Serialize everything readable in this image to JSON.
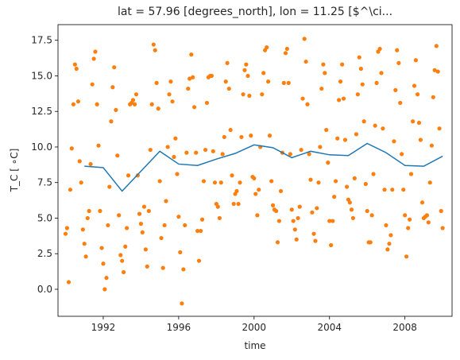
{
  "chart_data": {
    "type": "scatter",
    "title": "lat = 57.96 [degrees_north], lon = 11.25 [$^\\ci...",
    "xlabel": "time",
    "ylabel": "T_C [$^\\circ$C]",
    "ylabel_display": "T_C [ ∘C]",
    "xlim": [
      1989.6,
      2010.5
    ],
    "ylim": [
      -1.9,
      18.6
    ],
    "xticks": [
      1992,
      1996,
      2000,
      2004,
      2008
    ],
    "yticks": [
      0.0,
      2.5,
      5.0,
      7.5,
      10.0,
      12.5,
      15.0,
      17.5
    ],
    "ytick_labels": [
      "0.0",
      "2.5",
      "5.0",
      "7.5",
      "10.0",
      "12.5",
      "15.0",
      "17.5"
    ],
    "grid": false,
    "series": [
      {
        "kind": "line",
        "color": "#1f77b4",
        "x": [
          1991,
          1992,
          1993,
          1994,
          1995,
          1996,
          1997,
          1998,
          1999,
          2000,
          2001,
          2002,
          2003,
          2004,
          2005,
          2006,
          2007,
          2008,
          2009,
          2010
        ],
        "y": [
          8.65,
          8.55,
          6.9,
          8.3,
          9.7,
          8.8,
          8.7,
          9.15,
          9.55,
          10.15,
          9.95,
          9.25,
          9.7,
          9.45,
          9.4,
          10.25,
          9.6,
          8.7,
          8.65,
          9.35
        ]
      },
      {
        "kind": "scatter",
        "color": "#ff7f0e",
        "points": [
          [
            1990.0,
            3.9
          ],
          [
            1990.08,
            4.3
          ],
          [
            1990.17,
            0.5
          ],
          [
            1990.25,
            7.0
          ],
          [
            1990.33,
            9.9
          ],
          [
            1990.42,
            13.0
          ],
          [
            1990.5,
            15.8
          ],
          [
            1990.58,
            15.5
          ],
          [
            1990.67,
            13.2
          ],
          [
            1990.75,
            9.0
          ],
          [
            1990.83,
            7.5
          ],
          [
            1990.92,
            4.2
          ],
          [
            1991.0,
            3.2
          ],
          [
            1991.08,
            2.3
          ],
          [
            1991.17,
            5.0
          ],
          [
            1991.25,
            5.5
          ],
          [
            1991.33,
            8.8
          ],
          [
            1991.42,
            14.4
          ],
          [
            1991.5,
            16.2
          ],
          [
            1991.58,
            16.7
          ],
          [
            1991.67,
            13.0
          ],
          [
            1991.75,
            10.1
          ],
          [
            1991.83,
            5.5
          ],
          [
            1991.92,
            2.9
          ],
          [
            1992.0,
            1.8
          ],
          [
            1992.08,
            0.0
          ],
          [
            1992.17,
            0.8
          ],
          [
            1992.25,
            4.5
          ],
          [
            1992.33,
            7.2
          ],
          [
            1992.42,
            11.8
          ],
          [
            1992.5,
            14.2
          ],
          [
            1992.58,
            15.6
          ],
          [
            1992.67,
            12.6
          ],
          [
            1992.75,
            9.4
          ],
          [
            1992.83,
            5.2
          ],
          [
            1992.92,
            2.4
          ],
          [
            1993.0,
            2.0
          ],
          [
            1993.08,
            1.2
          ],
          [
            1993.17,
            3.0
          ],
          [
            1993.25,
            4.3
          ],
          [
            1993.33,
            8.0
          ],
          [
            1993.42,
            13.0
          ],
          [
            1993.5,
            13.1
          ],
          [
            1993.58,
            13.3
          ],
          [
            1993.67,
            13.0
          ],
          [
            1993.75,
            13.7
          ],
          [
            1993.83,
            8.0
          ],
          [
            1993.92,
            5.3
          ],
          [
            1994.0,
            4.6
          ],
          [
            1994.08,
            4.0
          ],
          [
            1994.17,
            5.8
          ],
          [
            1994.25,
            2.8
          ],
          [
            1994.33,
            1.6
          ],
          [
            1994.42,
            5.5
          ],
          [
            1994.5,
            9.8
          ],
          [
            1994.58,
            13.0
          ],
          [
            1994.67,
            17.2
          ],
          [
            1994.75,
            16.8
          ],
          [
            1994.83,
            14.5
          ],
          [
            1994.92,
            12.7
          ],
          [
            1995.0,
            7.6
          ],
          [
            1995.08,
            3.6
          ],
          [
            1995.17,
            1.5
          ],
          [
            1995.25,
            4.5
          ],
          [
            1995.33,
            6.2
          ],
          [
            1995.42,
            10.0
          ],
          [
            1995.5,
            13.7
          ],
          [
            1995.58,
            14.6
          ],
          [
            1995.67,
            13.2
          ],
          [
            1995.75,
            9.3
          ],
          [
            1995.83,
            10.6
          ],
          [
            1995.92,
            8.1
          ],
          [
            1996.0,
            5.1
          ],
          [
            1996.08,
            2.6
          ],
          [
            1996.17,
            -1.0
          ],
          [
            1996.25,
            1.4
          ],
          [
            1996.33,
            4.5
          ],
          [
            1996.42,
            9.6
          ],
          [
            1996.5,
            14.1
          ],
          [
            1996.58,
            14.8
          ],
          [
            1996.67,
            16.5
          ],
          [
            1996.75,
            14.9
          ],
          [
            1996.83,
            12.8
          ],
          [
            1996.92,
            9.6
          ],
          [
            1997.0,
            4.1
          ],
          [
            1997.08,
            2.0
          ],
          [
            1997.17,
            4.1
          ],
          [
            1997.25,
            4.9
          ],
          [
            1997.33,
            7.6
          ],
          [
            1997.42,
            9.8
          ],
          [
            1997.5,
            13.1
          ],
          [
            1997.58,
            14.9
          ],
          [
            1997.67,
            15.0
          ],
          [
            1997.75,
            15.0
          ],
          [
            1997.83,
            9.7
          ],
          [
            1997.92,
            7.5
          ],
          [
            1998.0,
            6.0
          ],
          [
            1998.08,
            5.8
          ],
          [
            1998.17,
            5.0
          ],
          [
            1998.25,
            7.5
          ],
          [
            1998.33,
            9.5
          ],
          [
            1998.42,
            10.7
          ],
          [
            1998.5,
            14.6
          ],
          [
            1998.58,
            15.9
          ],
          [
            1998.67,
            14.1
          ],
          [
            1998.75,
            11.2
          ],
          [
            1998.83,
            8.0
          ],
          [
            1998.92,
            6.0
          ],
          [
            1999.0,
            6.7
          ],
          [
            1999.08,
            6.9
          ],
          [
            1999.17,
            6.0
          ],
          [
            1999.25,
            7.5
          ],
          [
            1999.33,
            10.7
          ],
          [
            1999.42,
            13.7
          ],
          [
            1999.5,
            15.4
          ],
          [
            1999.58,
            15.8
          ],
          [
            1999.67,
            15.0
          ],
          [
            1999.75,
            13.6
          ],
          [
            1999.83,
            10.8
          ],
          [
            1999.92,
            7.9
          ],
          [
            2000.0,
            7.8
          ],
          [
            2000.08,
            6.7
          ],
          [
            2000.17,
            5.2
          ],
          [
            2000.25,
            7.0
          ],
          [
            2000.33,
            10.0
          ],
          [
            2000.42,
            13.7
          ],
          [
            2000.5,
            15.2
          ],
          [
            2000.58,
            16.8
          ],
          [
            2000.67,
            17.0
          ],
          [
            2000.75,
            14.6
          ],
          [
            2000.83,
            10.8
          ],
          [
            2000.92,
            7.6
          ],
          [
            2001.0,
            5.9
          ],
          [
            2001.08,
            5.6
          ],
          [
            2001.17,
            5.5
          ],
          [
            2001.25,
            3.3
          ],
          [
            2001.33,
            4.8
          ],
          [
            2001.42,
            6.9
          ],
          [
            2001.5,
            9.6
          ],
          [
            2001.58,
            14.5
          ],
          [
            2001.67,
            16.6
          ],
          [
            2001.75,
            16.9
          ],
          [
            2001.83,
            14.5
          ],
          [
            2001.92,
            9.5
          ],
          [
            2002.0,
            5.6
          ],
          [
            2002.08,
            4.8
          ],
          [
            2002.17,
            4.2
          ],
          [
            2002.25,
            3.5
          ],
          [
            2002.33,
            5.0
          ],
          [
            2002.42,
            5.8
          ],
          [
            2002.5,
            9.8
          ],
          [
            2002.58,
            13.4
          ],
          [
            2002.67,
            17.6
          ],
          [
            2002.75,
            16.0
          ],
          [
            2002.83,
            13.0
          ],
          [
            2002.92,
            9.5
          ],
          [
            2003.0,
            7.7
          ],
          [
            2003.08,
            5.4
          ],
          [
            2003.17,
            3.9
          ],
          [
            2003.25,
            3.4
          ],
          [
            2003.33,
            5.7
          ],
          [
            2003.42,
            7.5
          ],
          [
            2003.5,
            10.0
          ],
          [
            2003.58,
            14.1
          ],
          [
            2003.67,
            15.8
          ],
          [
            2003.75,
            15.2
          ],
          [
            2003.83,
            11.2
          ],
          [
            2003.92,
            8.9
          ],
          [
            2004.0,
            4.8
          ],
          [
            2004.08,
            3.1
          ],
          [
            2004.17,
            4.8
          ],
          [
            2004.25,
            6.5
          ],
          [
            2004.33,
            7.6
          ],
          [
            2004.42,
            10.6
          ],
          [
            2004.5,
            13.3
          ],
          [
            2004.58,
            14.6
          ],
          [
            2004.67,
            15.8
          ],
          [
            2004.75,
            13.4
          ],
          [
            2004.83,
            10.5
          ],
          [
            2004.92,
            7.2
          ],
          [
            2005.0,
            6.3
          ],
          [
            2005.08,
            6.1
          ],
          [
            2005.17,
            5.6
          ],
          [
            2005.25,
            5.0
          ],
          [
            2005.33,
            7.8
          ],
          [
            2005.42,
            10.9
          ],
          [
            2005.5,
            13.7
          ],
          [
            2005.58,
            16.3
          ],
          [
            2005.67,
            15.5
          ],
          [
            2005.75,
            14.4
          ],
          [
            2005.83,
            11.8
          ],
          [
            2005.92,
            7.4
          ],
          [
            2006.0,
            5.5
          ],
          [
            2006.08,
            3.3
          ],
          [
            2006.17,
            3.3
          ],
          [
            2006.25,
            5.2
          ],
          [
            2006.33,
            8.1
          ],
          [
            2006.42,
            11.5
          ],
          [
            2006.5,
            14.5
          ],
          [
            2006.58,
            16.7
          ],
          [
            2006.67,
            16.9
          ],
          [
            2006.75,
            15.2
          ],
          [
            2006.83,
            11.3
          ],
          [
            2006.92,
            7.0
          ],
          [
            2007.0,
            4.5
          ],
          [
            2007.08,
            2.8
          ],
          [
            2007.17,
            3.2
          ],
          [
            2007.25,
            3.8
          ],
          [
            2007.33,
            7.0
          ],
          [
            2007.42,
            10.4
          ],
          [
            2007.5,
            14.0
          ],
          [
            2007.58,
            16.8
          ],
          [
            2007.67,
            15.9
          ],
          [
            2007.75,
            13.1
          ],
          [
            2007.83,
            9.5
          ],
          [
            2007.92,
            7.0
          ],
          [
            2008.0,
            5.2
          ],
          [
            2008.08,
            2.3
          ],
          [
            2008.17,
            4.3
          ],
          [
            2008.25,
            4.9
          ],
          [
            2008.33,
            8.1
          ],
          [
            2008.42,
            11.8
          ],
          [
            2008.5,
            14.3
          ],
          [
            2008.58,
            16.1
          ],
          [
            2008.67,
            13.7
          ],
          [
            2008.75,
            11.7
          ],
          [
            2008.83,
            10.5
          ],
          [
            2008.92,
            6.1
          ],
          [
            2009.0,
            5.0
          ],
          [
            2009.08,
            5.1
          ],
          [
            2009.17,
            5.2
          ],
          [
            2009.25,
            4.7
          ],
          [
            2009.33,
            7.5
          ],
          [
            2009.42,
            10.1
          ],
          [
            2009.5,
            13.5
          ],
          [
            2009.58,
            15.4
          ],
          [
            2009.67,
            17.1
          ],
          [
            2009.75,
            15.3
          ],
          [
            2009.83,
            11.3
          ],
          [
            2009.92,
            5.5
          ],
          [
            2010.0,
            4.3
          ]
        ]
      }
    ]
  }
}
